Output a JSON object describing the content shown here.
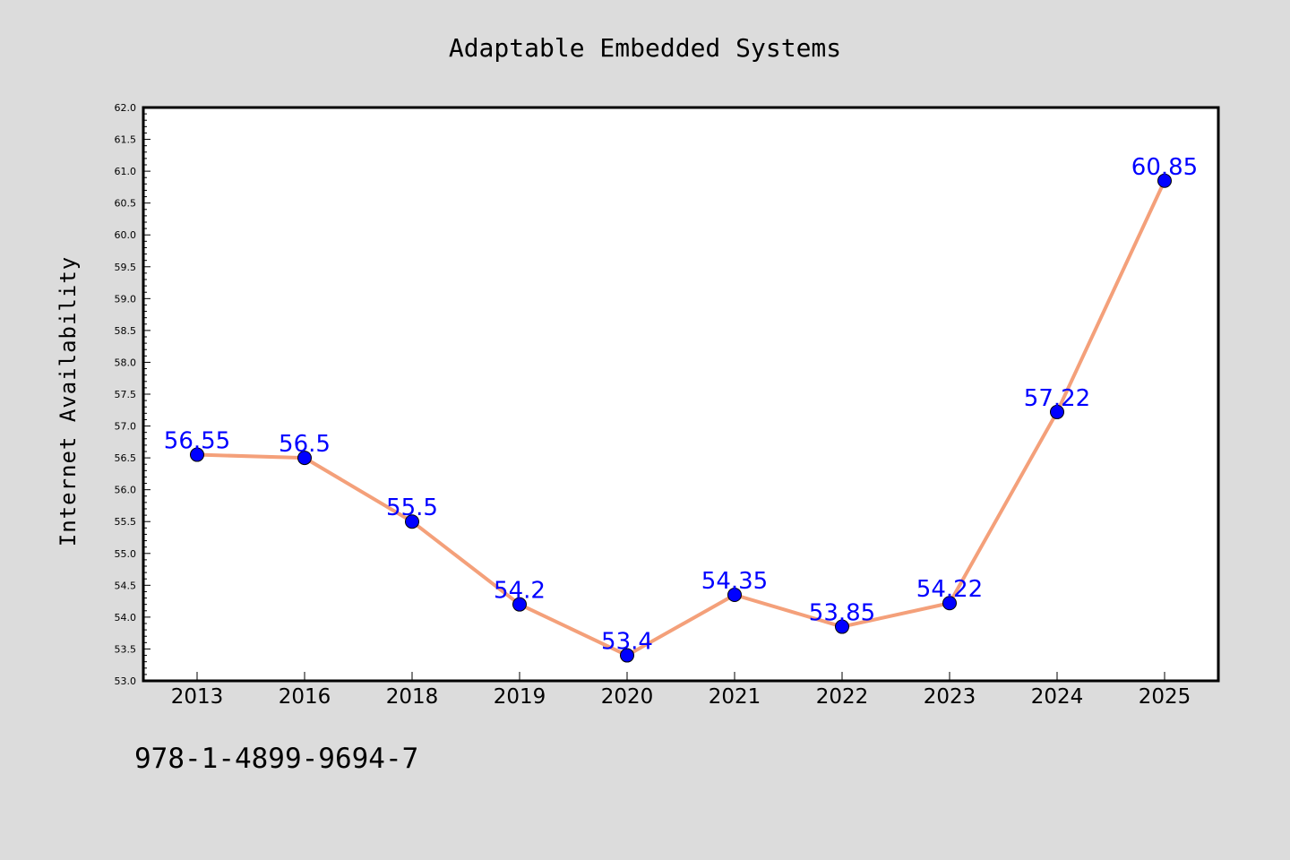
{
  "chart_data": {
    "type": "line",
    "title": "Adaptable Embedded Systems",
    "xlabel": "",
    "ylabel": "Internet Availability",
    "categories": [
      "2013",
      "2016",
      "2018",
      "2019",
      "2020",
      "2021",
      "2022",
      "2023",
      "2024",
      "2025"
    ],
    "series": [
      {
        "values": [
          56.55,
          56.5,
          55.5,
          54.2,
          53.4,
          54.35,
          53.85,
          54.22,
          57.22,
          60.85
        ]
      }
    ],
    "data_labels": [
      "56.55",
      "56.5",
      "55.5",
      "54.2",
      "53.4",
      "54.35",
      "53.85",
      "54.22",
      "57.22",
      "60.85"
    ],
    "ylim": [
      53.0,
      62.0
    ],
    "yticks": [
      "53.0",
      "53.5",
      "54.0",
      "54.5",
      "55.0",
      "55.5",
      "56.0",
      "56.5",
      "57.0",
      "57.5",
      "58.0",
      "58.5",
      "59.0",
      "59.5",
      "60.0",
      "60.5",
      "61.0",
      "61.5",
      "62.0"
    ],
    "grid": false,
    "colors": {
      "line": "#f4a07a",
      "marker": "#0000ff",
      "marker_edge": "#000000",
      "data_label": "#0000ff",
      "background": "#dcdcdc",
      "plot_background": "#ffffff"
    }
  },
  "footer": {
    "isbn": "978-1-4899-9694-7"
  }
}
